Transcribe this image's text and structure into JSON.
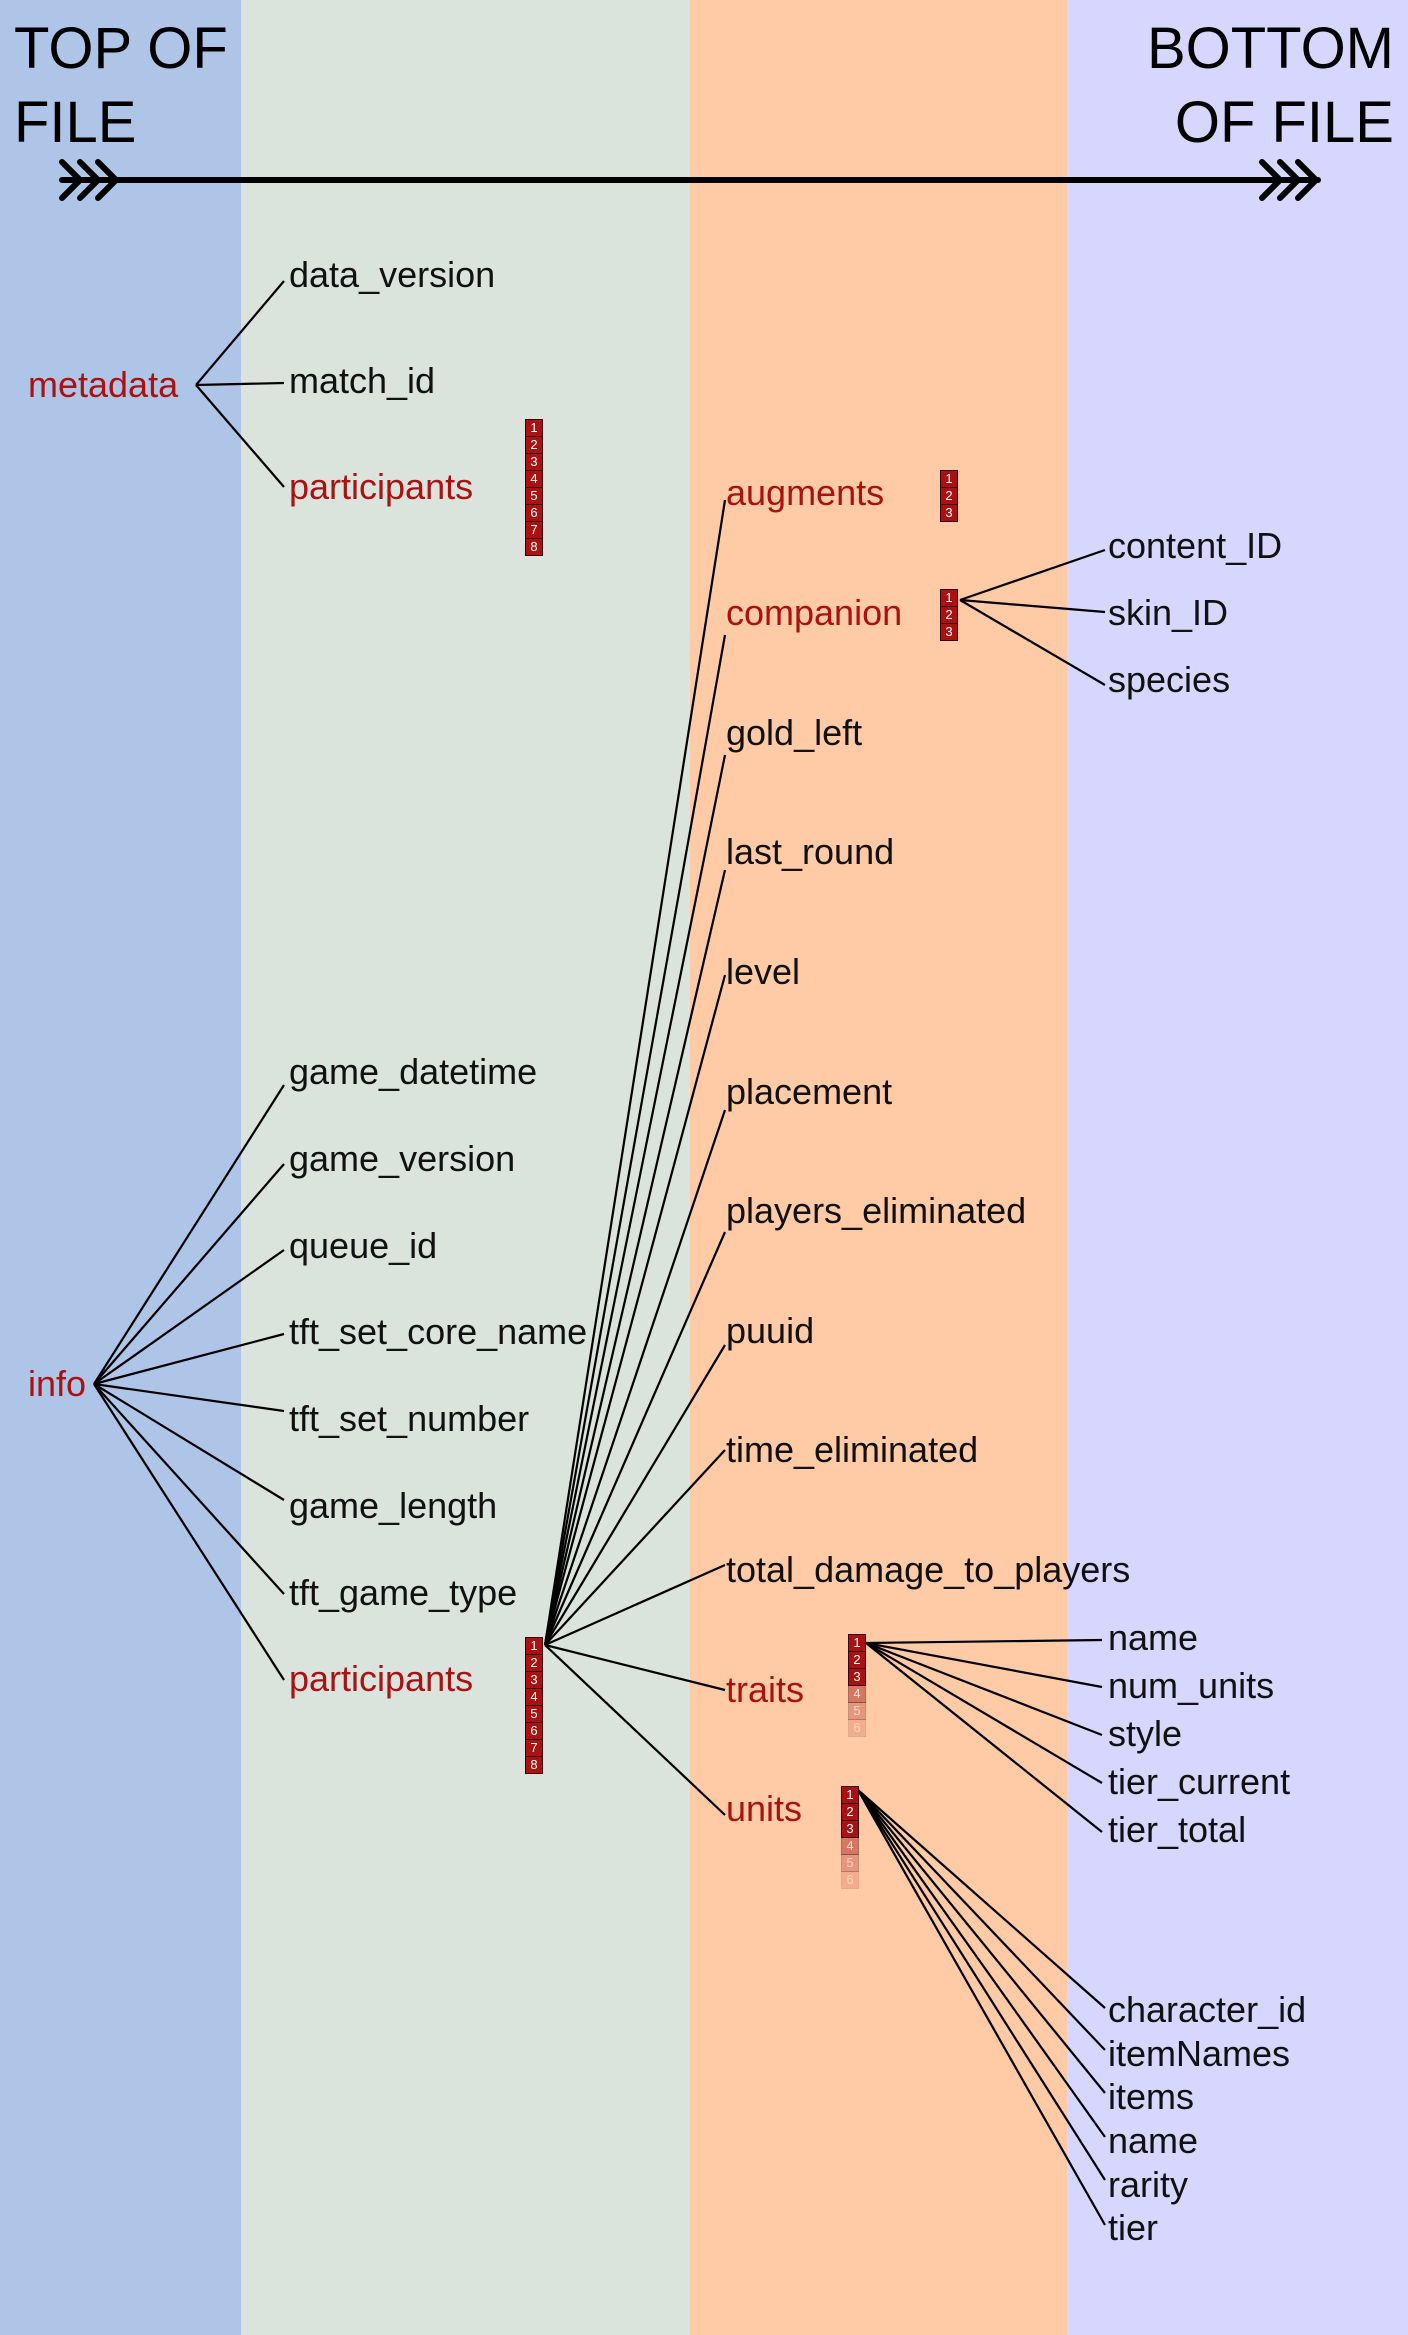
{
  "header": {
    "top_of_file": "TOP OF FILE",
    "bottom_of_file": "BOTTOM OF FILE"
  },
  "colors": {
    "band1": "#afc5e7",
    "band2": "#dbe3dd",
    "band3": "#ffcaa6",
    "band4": "#d6d6fe",
    "nested_label": "#aa1111",
    "list_cell": "#aa1111"
  },
  "nodes": {
    "metadata": "metadata",
    "info": "info",
    "metadata_children": {
      "data_version": "data_version",
      "match_id": "match_id",
      "participants": "participants"
    },
    "info_children": {
      "game_datetime": "game_datetime",
      "game_version": "game_version",
      "queue_id": "queue_id",
      "tft_set_core_name": "tft_set_core_name",
      "tft_set_number": "tft_set_number",
      "game_length": "game_length",
      "tft_game_type": "tft_game_type",
      "participants": "participants"
    },
    "participant_fields": {
      "augments": "augments",
      "companion": "companion",
      "gold_left": "gold_left",
      "last_round": "last_round",
      "level": "level",
      "placement": "placement",
      "players_eliminated": "players_eliminated",
      "puuid": "puuid",
      "time_eliminated": "time_eliminated",
      "total_damage_to_players": "total_damage_to_players",
      "traits": "traits",
      "units": "units"
    },
    "companion_fields": {
      "content_ID": "content_ID",
      "skin_ID": "skin_ID",
      "species": "species"
    },
    "trait_fields": {
      "name": "name",
      "num_units": "num_units",
      "style": "style",
      "tier_current": "tier_current",
      "tier_total": "tier_total"
    },
    "unit_fields": {
      "character_id": "character_id",
      "itemNames": "itemNames",
      "items": "items",
      "name": "name",
      "rarity": "rarity",
      "tier": "tier"
    }
  },
  "lists": {
    "metadata_participants": [
      "1",
      "2",
      "3",
      "4",
      "5",
      "6",
      "7",
      "8"
    ],
    "augments": [
      "1",
      "2",
      "3"
    ],
    "companion": [
      "1",
      "2",
      "3"
    ],
    "info_participants": [
      "1",
      "2",
      "3",
      "4",
      "5",
      "6",
      "7",
      "8"
    ],
    "traits": [
      "1",
      "2",
      "3",
      "4",
      "5",
      "6"
    ],
    "units": [
      "1",
      "2",
      "3",
      "4",
      "5",
      "6"
    ]
  },
  "list_opacity": {
    "traits": [
      1,
      1,
      1,
      0.45,
      0.28,
      0.15
    ],
    "units": [
      1,
      1,
      1,
      0.45,
      0.28,
      0.15
    ]
  }
}
